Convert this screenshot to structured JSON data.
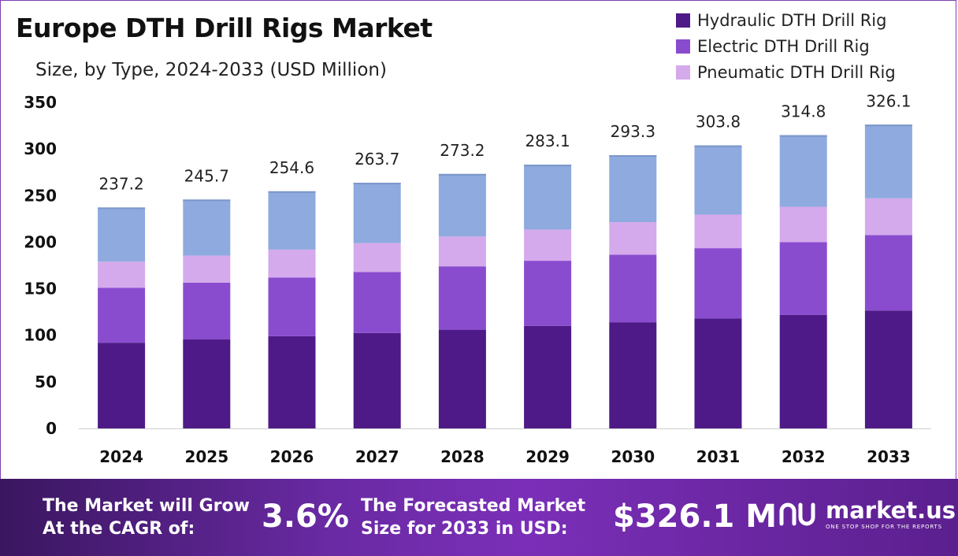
{
  "header": {
    "title": "Europe DTH Drill Rigs Market",
    "subtitle": "Size, by Type, 2024-2033 (USD Million)"
  },
  "legend": [
    {
      "label": "Hydraulic DTH Drill Rig",
      "color": "#4e1a87"
    },
    {
      "label": "Electric DTH Drill Rig",
      "color": "#8a4ccf"
    },
    {
      "label": "Pneumatic DTH Drill Rig",
      "color": "#d4aaec"
    }
  ],
  "chart_data": {
    "type": "bar",
    "stacked": true,
    "title": "Europe DTH Drill Rigs Market",
    "subtitle": "Size, by Type, 2024-2033 (USD Million)",
    "categories": [
      "2024",
      "2025",
      "2026",
      "2027",
      "2028",
      "2029",
      "2030",
      "2031",
      "2032",
      "2033"
    ],
    "series": [
      {
        "name": "Hydraulic DTH Drill Rig",
        "color": "#4e1a87",
        "values": [
          92,
          95.5,
          99,
          102.5,
          106,
          110,
          114,
          118,
          122,
          126.5
        ]
      },
      {
        "name": "Electric DTH Drill Rig",
        "color": "#8a4ccf",
        "values": [
          59,
          61,
          63,
          65.5,
          68,
          70,
          72.5,
          75.5,
          78,
          81
        ]
      },
      {
        "name": "Pneumatic DTH Drill Rig",
        "color": "#d4aaec",
        "values": [
          28,
          29,
          30,
          31,
          32,
          33.5,
          35,
          36,
          38,
          39.5
        ]
      },
      {
        "name": "",
        "color": "#8eaade",
        "values": [
          58.2,
          60.2,
          62.6,
          64.7,
          67.2,
          69.6,
          71.8,
          74.3,
          76.8,
          79.1
        ]
      }
    ],
    "totals": [
      237.2,
      245.7,
      254.6,
      263.7,
      273.2,
      283.1,
      293.3,
      303.8,
      314.8,
      326.1
    ],
    "total_labels": [
      "237.2",
      "245.7",
      "254.6",
      "263.7",
      "273.2",
      "283.1",
      "293.3",
      "303.8",
      "314.8",
      "326.1"
    ],
    "y_ticks": [
      "0",
      "50",
      "100",
      "150",
      "200",
      "250",
      "300",
      "350"
    ],
    "y_tick_values": [
      0,
      50,
      100,
      150,
      200,
      250,
      300,
      350
    ],
    "ylim": [
      0,
      350
    ],
    "xlabel": "",
    "ylabel": "",
    "grid": false,
    "legend_position": "top-right"
  },
  "footer": {
    "cagr_text_line1": "The Market will Grow",
    "cagr_text_line2": "At the CAGR of:",
    "cagr_value": "3.6%",
    "forecast_text_line1": "The Forecasted Market",
    "forecast_text_line2": "Size for 2033 in USD:",
    "forecast_value": "$326.1 M",
    "brand_name": "market.us",
    "brand_tagline": "ONE STOP SHOP FOR THE REPORTS"
  }
}
